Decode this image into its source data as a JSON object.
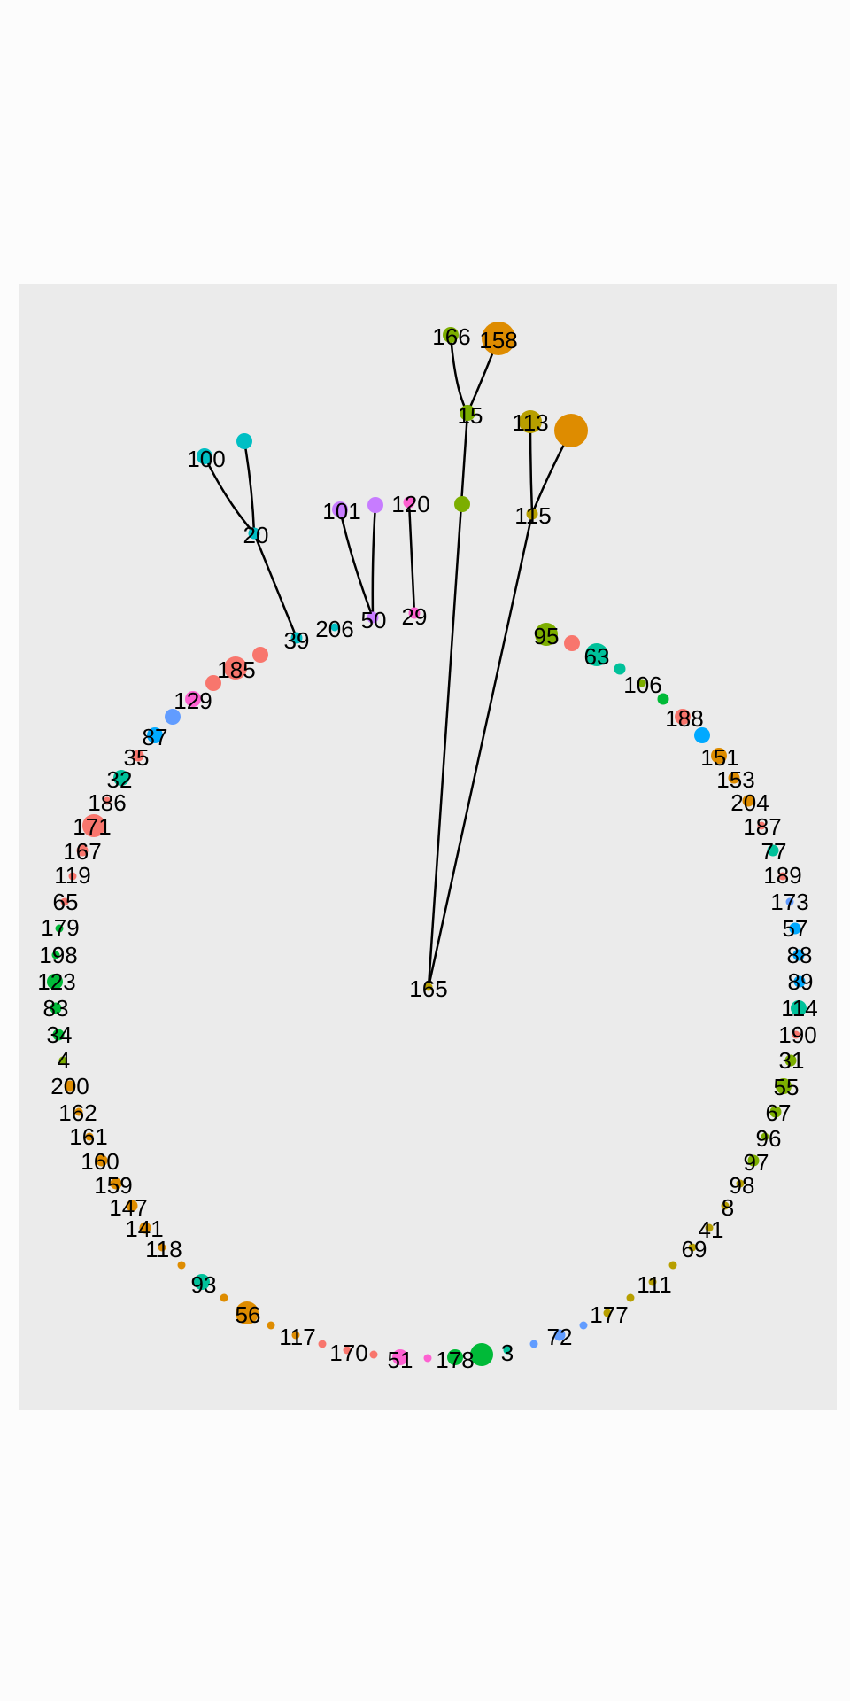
{
  "colors": {
    "panel_background": "#ebebeb",
    "page_background": "#fcfcfc",
    "edge": "#000000"
  },
  "edges": [
    [
      "158",
      "15"
    ],
    [
      "166",
      "15"
    ],
    [
      "15",
      "165"
    ],
    [
      "113",
      "115"
    ],
    [
      "115b",
      "115"
    ],
    [
      "115",
      "165"
    ],
    [
      "100",
      "20"
    ],
    [
      "100b",
      "20"
    ],
    [
      "20",
      "39"
    ],
    [
      "101",
      "50"
    ],
    [
      "101b",
      "50"
    ],
    [
      "120",
      "29"
    ]
  ],
  "nodes": [
    {
      "id": "166",
      "label": "166",
      "color": "#7cae00",
      "size": "medium"
    },
    {
      "id": "158",
      "label": "158",
      "color": "#de8c00",
      "size": "xlarge"
    },
    {
      "id": "15",
      "label": "15",
      "color": "#7cae00",
      "size": "medium"
    },
    {
      "id": "115b",
      "label": "",
      "color": "#de8c00",
      "size": "xlarge"
    },
    {
      "id": "113",
      "label": "113",
      "color": "#b79f00",
      "size": "large"
    },
    {
      "id": "115",
      "label": "115",
      "color": "#b79f00",
      "size": "small"
    },
    {
      "id": "167x",
      "label": "",
      "color": "#7cae00",
      "size": "medium"
    },
    {
      "id": "100b",
      "label": "",
      "color": "#00bfc4",
      "size": "medium"
    },
    {
      "id": "100",
      "label": "100",
      "color": "#00bfc4",
      "size": "medium"
    },
    {
      "id": "20",
      "label": "20",
      "color": "#00bfc4",
      "size": "small"
    },
    {
      "id": "101",
      "label": "101",
      "color": "#c77cff",
      "size": "medium"
    },
    {
      "id": "101b",
      "label": "",
      "color": "#c77cff",
      "size": "medium"
    },
    {
      "id": "120",
      "label": "120",
      "color": "#fd61d1",
      "size": "small"
    },
    {
      "id": "29",
      "label": "29",
      "color": "#fd61d1",
      "size": "small"
    },
    {
      "id": "50",
      "label": "50",
      "color": "#c77cff",
      "size": "small"
    },
    {
      "id": "206",
      "label": "206",
      "color": "#00bfc4",
      "size": "tiny"
    },
    {
      "id": "39",
      "label": "39",
      "color": "#00bfc4",
      "size": "small"
    },
    {
      "id": "165",
      "label": "165",
      "color": "#b79f00",
      "size": "tiny"
    },
    {
      "id": "rA",
      "label": "",
      "color": "#f8766d",
      "size": "medium"
    },
    {
      "id": "185",
      "label": "185",
      "color": "#f8766d",
      "size": "large"
    },
    {
      "id": "rB",
      "label": "",
      "color": "#f8766d",
      "size": "medium"
    },
    {
      "id": "129",
      "label": "129",
      "color": "#fd61d1",
      "size": "medium"
    },
    {
      "id": "rC",
      "label": "",
      "color": "#619cff",
      "size": "medium"
    },
    {
      "id": "87",
      "label": "87",
      "color": "#00a9ff",
      "size": "medium"
    },
    {
      "id": "35",
      "label": "35",
      "color": "#f8766d",
      "size": "small"
    },
    {
      "id": "32",
      "label": "32",
      "color": "#00c19a",
      "size": "medium"
    },
    {
      "id": "186",
      "label": "186",
      "color": "#f8766d",
      "size": "tiny"
    },
    {
      "id": "171",
      "label": "171",
      "color": "#f8766d",
      "size": "large"
    },
    {
      "id": "167",
      "label": "167",
      "color": "#f8766d",
      "size": "small"
    },
    {
      "id": "119",
      "label": "119",
      "color": "#f8766d",
      "size": "tiny"
    },
    {
      "id": "65",
      "label": "65",
      "color": "#f8766d",
      "size": "tiny"
    },
    {
      "id": "179",
      "label": "179",
      "color": "#00ba38",
      "size": "tiny"
    },
    {
      "id": "198",
      "label": "198",
      "color": "#00ba38",
      "size": "tiny"
    },
    {
      "id": "123",
      "label": "123",
      "color": "#00ba38",
      "size": "medium"
    },
    {
      "id": "83",
      "label": "83",
      "color": "#00ba38",
      "size": "small"
    },
    {
      "id": "34",
      "label": "34",
      "color": "#00ba38",
      "size": "small"
    },
    {
      "id": "4",
      "label": "4",
      "color": "#7cae00",
      "size": "tiny"
    },
    {
      "id": "200",
      "label": "200",
      "color": "#de8c00",
      "size": "small"
    },
    {
      "id": "162",
      "label": "162",
      "color": "#de8c00",
      "size": "tiny"
    },
    {
      "id": "161",
      "label": "161",
      "color": "#de8c00",
      "size": "tiny"
    },
    {
      "id": "160",
      "label": "160",
      "color": "#de8c00",
      "size": "small"
    },
    {
      "id": "159",
      "label": "159",
      "color": "#de8c00",
      "size": "small"
    },
    {
      "id": "147",
      "label": "147",
      "color": "#de8c00",
      "size": "small"
    },
    {
      "id": "141",
      "label": "141",
      "color": "#de8c00",
      "size": "small"
    },
    {
      "id": "118",
      "label": "118",
      "color": "#de8c00",
      "size": "tiny"
    },
    {
      "id": "lA",
      "label": "",
      "color": "#de8c00",
      "size": "tiny"
    },
    {
      "id": "93",
      "label": "93",
      "color": "#00c19a",
      "size": "medium"
    },
    {
      "id": "lB",
      "label": "",
      "color": "#de8c00",
      "size": "tiny"
    },
    {
      "id": "56",
      "label": "56",
      "color": "#de8c00",
      "size": "large"
    },
    {
      "id": "lC",
      "label": "",
      "color": "#de8c00",
      "size": "tiny"
    },
    {
      "id": "117",
      "label": "117",
      "color": "#de8c00",
      "size": "tiny"
    },
    {
      "id": "lD",
      "label": "",
      "color": "#f8766d",
      "size": "tiny"
    },
    {
      "id": "170",
      "label": "170",
      "color": "#f8766d",
      "size": "tiny"
    },
    {
      "id": "lE",
      "label": "",
      "color": "#f8766d",
      "size": "tiny"
    },
    {
      "id": "51",
      "label": "51",
      "color": "#fd61d1",
      "size": "medium"
    },
    {
      "id": "lF",
      "label": "",
      "color": "#fd61d1",
      "size": "tiny"
    },
    {
      "id": "178",
      "label": "178",
      "color": "#00ba38",
      "size": "medium"
    },
    {
      "id": "lG",
      "label": "",
      "color": "#00ba38",
      "size": "large"
    },
    {
      "id": "3",
      "label": "3",
      "color": "#00c19a",
      "size": "tiny"
    },
    {
      "id": "lH",
      "label": "",
      "color": "#619cff",
      "size": "tiny"
    },
    {
      "id": "72",
      "label": "72",
      "color": "#619cff",
      "size": "small"
    },
    {
      "id": "lI",
      "label": "",
      "color": "#619cff",
      "size": "tiny"
    },
    {
      "id": "177",
      "label": "177",
      "color": "#b79f00",
      "size": "tiny"
    },
    {
      "id": "lJ",
      "label": "",
      "color": "#b79f00",
      "size": "tiny"
    },
    {
      "id": "111",
      "label": "111",
      "color": "#b79f00",
      "size": "tiny"
    },
    {
      "id": "lK",
      "label": "",
      "color": "#b79f00",
      "size": "tiny"
    },
    {
      "id": "69",
      "label": "69",
      "color": "#b79f00",
      "size": "tiny"
    },
    {
      "id": "41",
      "label": "41",
      "color": "#b79f00",
      "size": "tiny"
    },
    {
      "id": "8",
      "label": "8",
      "color": "#b79f00",
      "size": "tiny"
    },
    {
      "id": "98",
      "label": "98",
      "color": "#b79f00",
      "size": "tiny"
    },
    {
      "id": "97",
      "label": "97",
      "color": "#7cae00",
      "size": "small"
    },
    {
      "id": "96",
      "label": "96",
      "color": "#7cae00",
      "size": "tiny"
    },
    {
      "id": "67",
      "label": "67",
      "color": "#7cae00",
      "size": "small"
    },
    {
      "id": "55",
      "label": "55",
      "color": "#7cae00",
      "size": "medium"
    },
    {
      "id": "31",
      "label": "31",
      "color": "#7cae00",
      "size": "small"
    },
    {
      "id": "190",
      "label": "190",
      "color": "#f8766d",
      "size": "tiny"
    },
    {
      "id": "114",
      "label": "114",
      "color": "#00c19a",
      "size": "medium"
    },
    {
      "id": "89",
      "label": "89",
      "color": "#00a9ff",
      "size": "small"
    },
    {
      "id": "88",
      "label": "88",
      "color": "#00a9ff",
      "size": "small"
    },
    {
      "id": "57",
      "label": "57",
      "color": "#00a9ff",
      "size": "small"
    },
    {
      "id": "173",
      "label": "173",
      "color": "#619cff",
      "size": "tiny"
    },
    {
      "id": "189",
      "label": "189",
      "color": "#f8766d",
      "size": "tiny"
    },
    {
      "id": "77",
      "label": "77",
      "color": "#00c19a",
      "size": "small"
    },
    {
      "id": "187",
      "label": "187",
      "color": "#f8766d",
      "size": "tiny"
    },
    {
      "id": "204",
      "label": "204",
      "color": "#de8c00",
      "size": "small"
    },
    {
      "id": "153",
      "label": "153",
      "color": "#de8c00",
      "size": "small"
    },
    {
      "id": "151",
      "label": "151",
      "color": "#de8c00",
      "size": "medium"
    },
    {
      "id": "rD",
      "label": "",
      "color": "#00a9ff",
      "size": "medium"
    },
    {
      "id": "188",
      "label": "188",
      "color": "#f8766d",
      "size": "medium"
    },
    {
      "id": "rE",
      "label": "",
      "color": "#00ba38",
      "size": "small"
    },
    {
      "id": "106",
      "label": "106",
      "color": "#7cae00",
      "size": "tiny"
    },
    {
      "id": "rF",
      "label": "",
      "color": "#00c19a",
      "size": "small"
    },
    {
      "id": "63",
      "label": "63",
      "color": "#00c19a",
      "size": "large"
    },
    {
      "id": "rG",
      "label": "",
      "color": "#f8766d",
      "size": "medium"
    },
    {
      "id": "95",
      "label": "95",
      "color": "#7cae00",
      "size": "large"
    }
  ]
}
